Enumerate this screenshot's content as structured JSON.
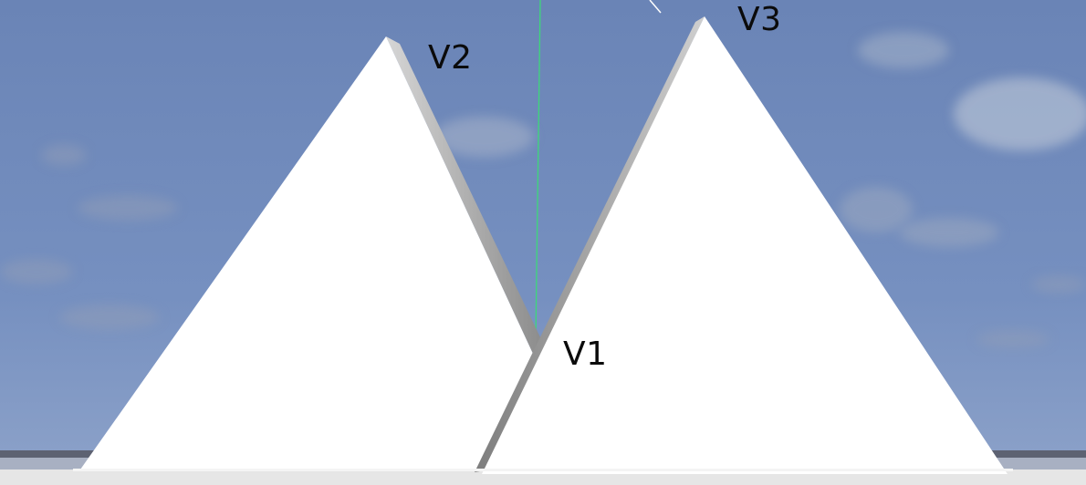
{
  "scene": {
    "sky_top_color": "#6a84b6",
    "sky_bottom_color": "#7f98c6",
    "ground_color": "#5d6272",
    "triangle_color": "#ffffff",
    "triangle_shadow_color": "#9a9a9a",
    "axis_color": "#3dd77a"
  },
  "labels": {
    "v1": "V1",
    "v2": "V2",
    "v3": "V3"
  }
}
